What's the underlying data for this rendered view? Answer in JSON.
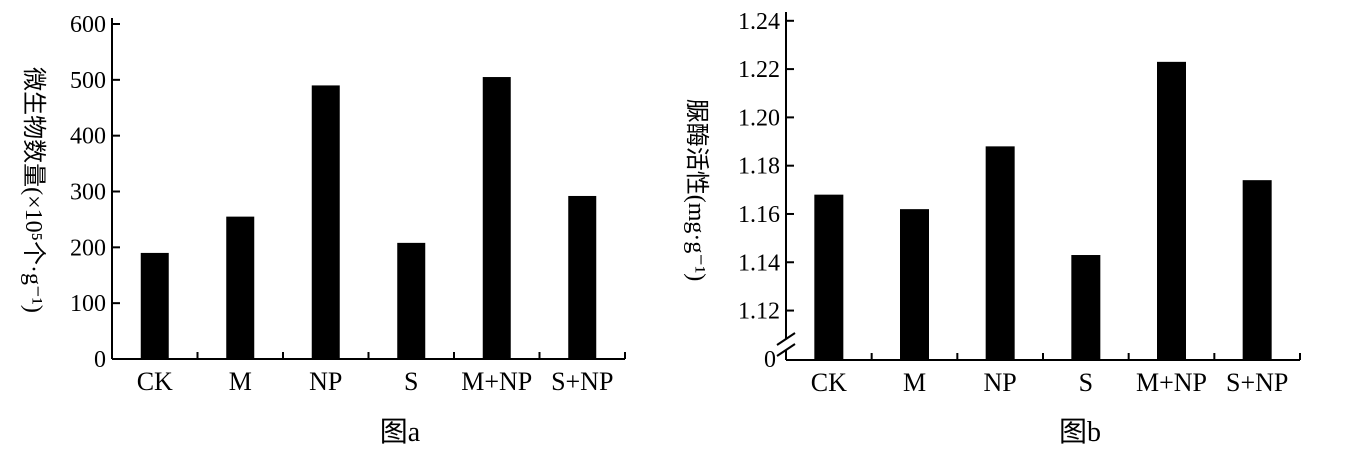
{
  "chart_data": [
    {
      "type": "bar",
      "caption": "图a",
      "ylabel": "微生物数量(×10⁵个·g⁻¹)",
      "categories": [
        "CK",
        "M",
        "NP",
        "S",
        "M+NP",
        "S+NP"
      ],
      "values": [
        190,
        255,
        490,
        208,
        505,
        292
      ],
      "ylim": [
        0,
        600
      ],
      "yticks": [
        "0",
        "100",
        "200",
        "300",
        "400",
        "500",
        "600"
      ],
      "bar_color": "#000000",
      "grid": false
    },
    {
      "type": "bar",
      "caption": "图b",
      "ylabel": "脲酶活性(mg·g⁻¹)",
      "categories": [
        "CK",
        "M",
        "NP",
        "S",
        "M+NP",
        "S+NP"
      ],
      "values": [
        1.168,
        1.162,
        1.188,
        1.143,
        1.223,
        1.174
      ],
      "ylim": [
        1.11,
        1.24
      ],
      "yticks": [
        "1.12",
        "1.14",
        "1.16",
        "1.18",
        "1.20",
        "1.22",
        "1.24"
      ],
      "axis_break": true,
      "origin_label": "0",
      "bar_color": "#000000",
      "grid": false
    }
  ]
}
